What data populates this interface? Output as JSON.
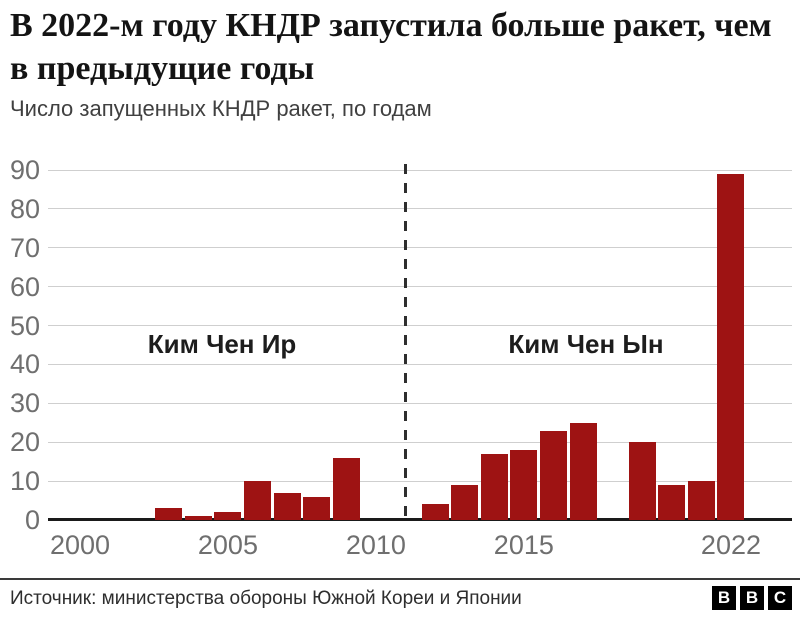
{
  "header": {
    "title": "В 2022-м году КНДР запустила больше ракет, чем в предыдущие годы",
    "subtitle": "Число запущенных КНДР ракет, по годам"
  },
  "chart_data": {
    "type": "bar",
    "title": "Число запущенных КНДР ракет, по годам",
    "x": [
      2000,
      2001,
      2002,
      2003,
      2004,
      2005,
      2006,
      2007,
      2008,
      2009,
      2010,
      2011,
      2012,
      2013,
      2014,
      2015,
      2016,
      2017,
      2018,
      2019,
      2020,
      2021,
      2022
    ],
    "values": [
      0,
      0,
      0,
      3,
      1,
      2,
      10,
      7,
      6,
      16,
      0,
      0,
      4,
      9,
      17,
      18,
      23,
      25,
      0,
      20,
      9,
      10,
      89
    ],
    "ylim": [
      0,
      90
    ],
    "yticks": [
      0,
      10,
      20,
      30,
      40,
      50,
      60,
      70,
      80,
      90
    ],
    "xticks": [
      2000,
      2005,
      2010,
      2015,
      2022
    ],
    "grid": true,
    "legend": false,
    "bar_color": "#9e1313",
    "divider_year": 2011,
    "annotations": [
      {
        "label": "Ким Чен Ир",
        "x": 2004.8,
        "y": 45
      },
      {
        "label": "Ким Чен Ын",
        "x": 2017.1,
        "y": 45
      }
    ]
  },
  "footer": {
    "source": "Источник: министерства обороны Южной Кореи и Японии",
    "logo_letters": [
      "B",
      "B",
      "C"
    ]
  }
}
